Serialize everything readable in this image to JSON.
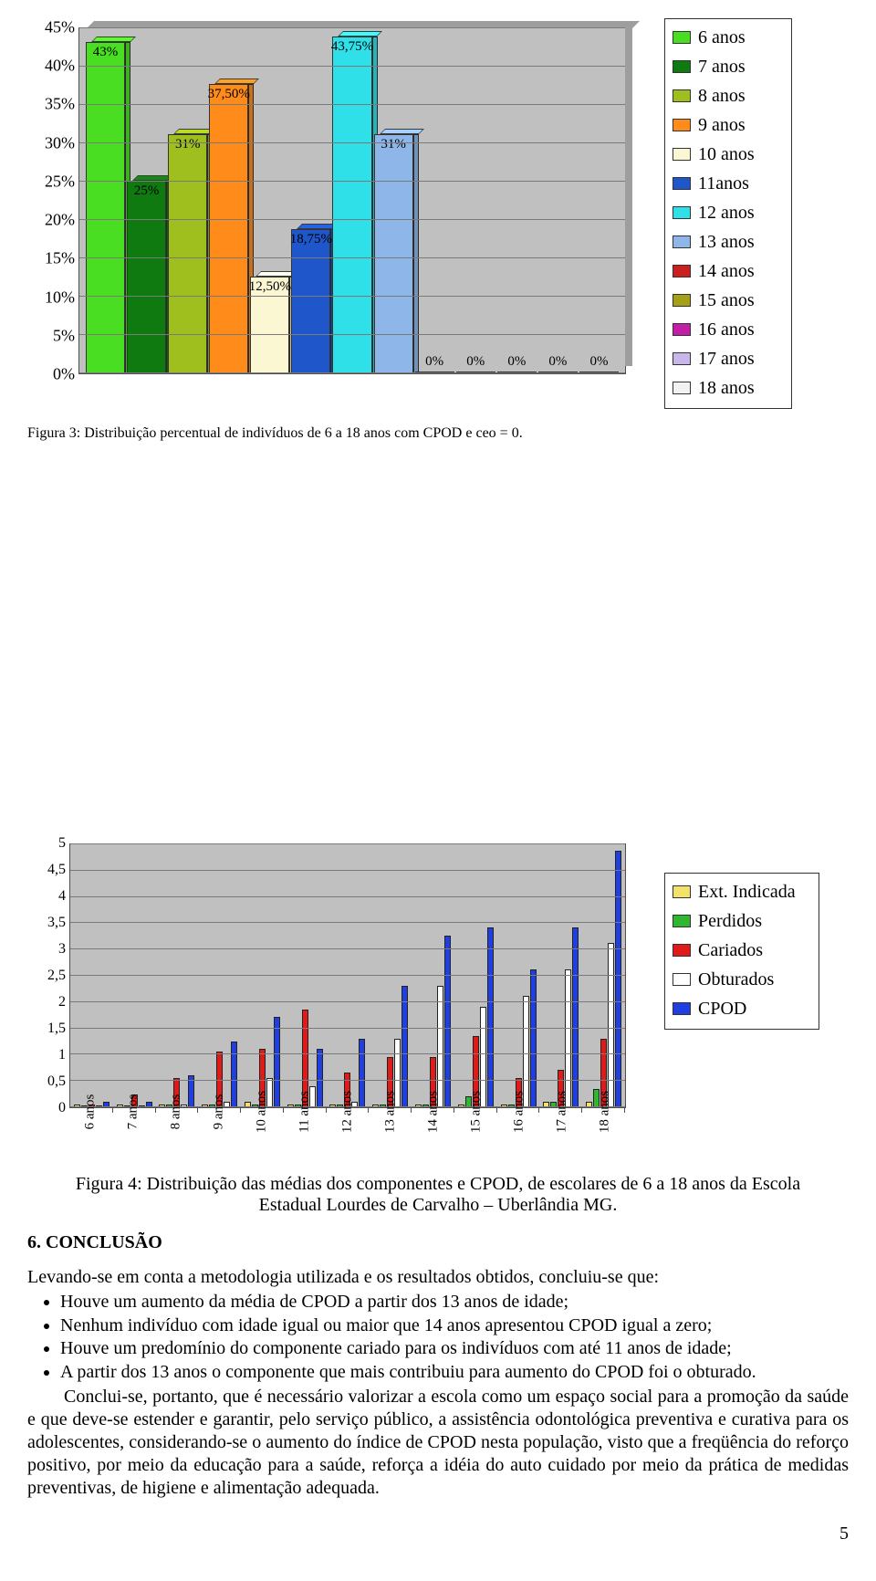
{
  "chart1": {
    "type": "bar",
    "ylim": [
      0,
      45
    ],
    "ytick_step": 5,
    "yticks": [
      "0%",
      "5%",
      "10%",
      "15%",
      "20%",
      "25%",
      "30%",
      "35%",
      "40%",
      "45%"
    ],
    "background_color": "#c0c0c0",
    "grid_color": "#7a7a7a",
    "bars": [
      {
        "label": "43%",
        "value": 43,
        "color": "#4ade22"
      },
      {
        "label": "25%",
        "value": 25,
        "color": "#0f7a0f"
      },
      {
        "label": "31%",
        "value": 31,
        "color": "#9fbf1e"
      },
      {
        "label": "37,50%",
        "value": 37.5,
        "color": "#ff8c1a"
      },
      {
        "label": "12,50%",
        "value": 12.5,
        "color": "#fbf7d2"
      },
      {
        "label": "18,75%",
        "value": 18.75,
        "color": "#1f56c9"
      },
      {
        "label": "43,75%",
        "value": 43.75,
        "color": "#2fe0e8"
      },
      {
        "label": "31%",
        "value": 31,
        "color": "#8fb6e8"
      },
      {
        "label": "0%",
        "value": 0,
        "color": "#cc1f1f"
      },
      {
        "label": "0%",
        "value": 0,
        "color": "#a6a016"
      },
      {
        "label": "0%",
        "value": 0,
        "color": "#c21fa6"
      },
      {
        "label": "0%",
        "value": 0,
        "color": "#c9b6ea"
      },
      {
        "label": "0%",
        "value": 0,
        "color": "#f2f2f2"
      }
    ],
    "caption_pre": "Figura 3: Distribuição percentual de indivíduos de 6 a 18 anos com CPOD e ceo = 0."
  },
  "legend1": [
    {
      "label": "6 anos",
      "color": "#4ade22"
    },
    {
      "label": "7 anos",
      "color": "#0f7a0f"
    },
    {
      "label": "8 anos",
      "color": "#9fbf1e"
    },
    {
      "label": "9 anos",
      "color": "#ff8c1a"
    },
    {
      "label": "10 anos",
      "color": "#fbf7d2"
    },
    {
      "label": "11anos",
      "color": "#1f56c9"
    },
    {
      "label": "12 anos",
      "color": "#2fe0e8"
    },
    {
      "label": "13 anos",
      "color": "#8fb6e8"
    },
    {
      "label": "14 anos",
      "color": "#cc1f1f"
    },
    {
      "label": "15 anos",
      "color": "#a6a016"
    },
    {
      "label": "16 anos",
      "color": "#c21fa6"
    },
    {
      "label": "17 anos",
      "color": "#c9b6ea"
    },
    {
      "label": "18 anos",
      "color": "#f2f2f2"
    }
  ],
  "chart2": {
    "type": "grouped-bar",
    "ylim": [
      0,
      5
    ],
    "ytick_step": 0.5,
    "yticks": [
      "0",
      "0,5",
      "1",
      "1,5",
      "2",
      "2,5",
      "3",
      "3,5",
      "4",
      "4,5",
      "5"
    ],
    "background_color": "#c0c0c0",
    "grid_color": "#7a7a7a",
    "series": [
      {
        "key": "ext",
        "label": "Ext. Indicada",
        "color": "#f2e26b"
      },
      {
        "key": "per",
        "label": "Perdidos",
        "color": "#2fb82f"
      },
      {
        "key": "car",
        "label": "Cariados",
        "color": "#e01919"
      },
      {
        "key": "obt",
        "label": "Obturados",
        "color": "#ffffff"
      },
      {
        "key": "cpo",
        "label": "CPOD",
        "color": "#1f3fe0"
      }
    ],
    "categories": [
      "6 anos",
      "7 anos",
      "8 anos",
      "9 anos",
      "10 anos",
      "11 anos",
      "12 anos",
      "13 anos",
      "14 anos",
      "15 anos",
      "16 anos",
      "17 anos",
      "18 anos"
    ],
    "data": [
      {
        "ext": 0.05,
        "per": 0.0,
        "car": 0.05,
        "obt": 0.0,
        "cpo": 0.1
      },
      {
        "ext": 0.05,
        "per": 0.0,
        "car": 0.25,
        "obt": 0.0,
        "cpo": 0.1
      },
      {
        "ext": 0.05,
        "per": 0.05,
        "car": 0.55,
        "obt": 0.05,
        "cpo": 0.6
      },
      {
        "ext": 0.05,
        "per": 0.05,
        "car": 1.05,
        "obt": 0.1,
        "cpo": 1.25
      },
      {
        "ext": 0.1,
        "per": 0.05,
        "car": 1.1,
        "obt": 0.55,
        "cpo": 1.7
      },
      {
        "ext": 0.05,
        "per": 0.05,
        "car": 1.85,
        "obt": 0.4,
        "cpo": 1.1
      },
      {
        "ext": 0.05,
        "per": 0.05,
        "car": 0.65,
        "obt": 0.1,
        "cpo": 1.3
      },
      {
        "ext": 0.05,
        "per": 0.05,
        "car": 0.95,
        "obt": 1.3,
        "cpo": 2.3
      },
      {
        "ext": 0.05,
        "per": 0.05,
        "car": 0.95,
        "obt": 2.3,
        "cpo": 3.25
      },
      {
        "ext": 0.05,
        "per": 0.2,
        "car": 1.35,
        "obt": 1.9,
        "cpo": 3.4
      },
      {
        "ext": 0.05,
        "per": 0.05,
        "car": 0.55,
        "obt": 2.1,
        "cpo": 2.6
      },
      {
        "ext": 0.1,
        "per": 0.1,
        "car": 0.7,
        "obt": 2.6,
        "cpo": 3.4
      },
      {
        "ext": 0.1,
        "per": 0.35,
        "car": 1.3,
        "obt": 3.1,
        "cpo": 4.85
      }
    ],
    "caption": "Figura 4: Distribuição das médias dos componentes e CPOD, de escolares de 6 a 18 anos da Escola Estadual Lourdes de Carvalho – Uberlândia MG."
  },
  "text": {
    "section_title": "6. CONCLUSÃO",
    "intro": "Levando-se em conta a metodologia utilizada e os resultados obtidos, concluiu-se que:",
    "bullets": [
      "Houve um aumento da média de CPOD a partir dos 13 anos de idade;",
      "Nenhum indivíduo com idade igual ou maior que 14 anos apresentou CPOD igual a zero;",
      "Houve um predomínio do componente cariado para os indivíduos com até 11 anos de idade;",
      "A partir dos 13 anos o componente que mais contribuiu para aumento do CPOD foi o obturado."
    ],
    "para": "Conclui-se, portanto, que é necessário valorizar a escola como um espaço social para a promoção da saúde e que deve-se estender e garantir, pelo serviço público, a assistência odontológica preventiva e curativa para os adolescentes, considerando-se o aumento do índice de CPOD nesta população, visto que a freqüência do reforço positivo, por meio da educação para a saúde, reforça a idéia do auto cuidado por meio da prática de medidas preventivas, de higiene e alimentação adequada.",
    "page": "5"
  }
}
